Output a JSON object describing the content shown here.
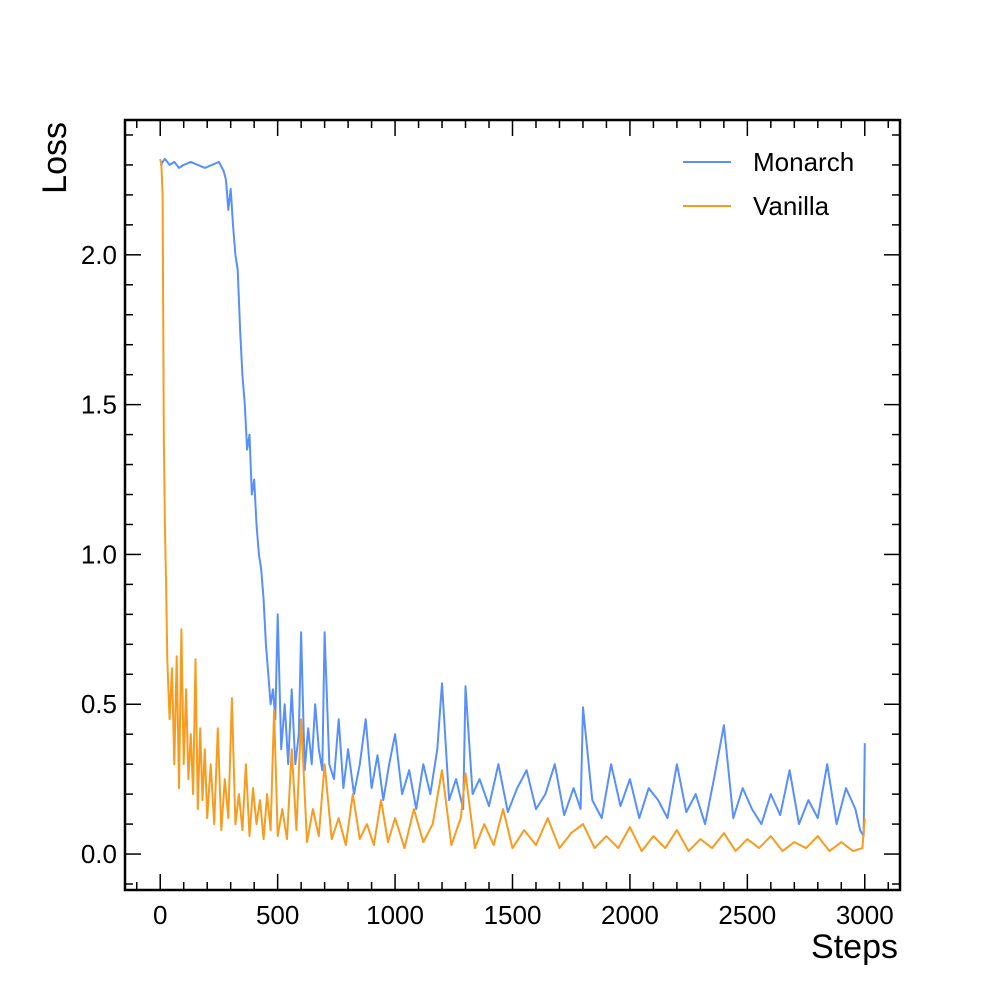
{
  "chart_data": {
    "type": "line",
    "title": "",
    "xlabel": "Steps",
    "ylabel": "Loss",
    "xlim": [
      -150,
      3150
    ],
    "ylim": [
      -0.12,
      2.45
    ],
    "grid": false,
    "legend_position": "top-right",
    "xticks": {
      "major": [
        0,
        500,
        1000,
        1500,
        2000,
        2500,
        3000
      ],
      "labels": [
        "0",
        "500",
        "1000",
        "1500",
        "2000",
        "2500",
        "3000"
      ],
      "minor": [
        -100,
        100,
        200,
        300,
        400,
        600,
        700,
        800,
        900,
        1100,
        1200,
        1300,
        1400,
        1600,
        1700,
        1800,
        1900,
        2100,
        2200,
        2300,
        2400,
        2600,
        2700,
        2800,
        2900,
        3100
      ]
    },
    "yticks": {
      "major": [
        0.0,
        0.5,
        1.0,
        1.5,
        2.0
      ],
      "labels": [
        "0.0",
        "0.5",
        "1.0",
        "1.5",
        "2.0"
      ],
      "minor": [
        -0.1,
        0.1,
        0.2,
        0.3,
        0.4,
        0.6,
        0.7,
        0.8,
        0.9,
        1.1,
        1.2,
        1.3,
        1.4,
        1.6,
        1.7,
        1.8,
        1.9,
        2.1,
        2.2,
        2.3,
        2.4
      ]
    },
    "series": [
      {
        "name": "Monarch",
        "color": "#5790fc",
        "x": [
          0,
          5,
          10,
          20,
          40,
          60,
          80,
          100,
          130,
          160,
          190,
          220,
          250,
          270,
          280,
          290,
          300,
          310,
          320,
          330,
          340,
          350,
          360,
          370,
          380,
          390,
          400,
          410,
          420,
          430,
          440,
          450,
          460,
          470,
          480,
          490,
          500,
          515,
          530,
          545,
          560,
          575,
          590,
          600,
          615,
          630,
          645,
          660,
          675,
          690,
          700,
          720,
          740,
          760,
          780,
          800,
          825,
          850,
          875,
          900,
          925,
          950,
          975,
          1000,
          1030,
          1060,
          1090,
          1120,
          1150,
          1180,
          1200,
          1230,
          1260,
          1290,
          1300,
          1330,
          1360,
          1400,
          1440,
          1480,
          1520,
          1560,
          1600,
          1640,
          1680,
          1720,
          1760,
          1790,
          1800,
          1840,
          1880,
          1920,
          1960,
          2000,
          2040,
          2080,
          2120,
          2160,
          2200,
          2240,
          2280,
          2320,
          2360,
          2400,
          2440,
          2480,
          2520,
          2560,
          2600,
          2640,
          2680,
          2720,
          2760,
          2800,
          2840,
          2880,
          2920,
          2960,
          2980,
          2995,
          3000
        ],
        "values": [
          2.3,
          2.3,
          2.31,
          2.32,
          2.3,
          2.31,
          2.29,
          2.3,
          2.31,
          2.3,
          2.29,
          2.3,
          2.31,
          2.28,
          2.25,
          2.15,
          2.22,
          2.1,
          2.0,
          1.95,
          1.75,
          1.6,
          1.5,
          1.35,
          1.4,
          1.2,
          1.25,
          1.1,
          1.0,
          0.95,
          0.85,
          0.7,
          0.6,
          0.5,
          0.55,
          0.45,
          0.8,
          0.35,
          0.5,
          0.3,
          0.55,
          0.3,
          0.4,
          0.74,
          0.28,
          0.42,
          0.3,
          0.5,
          0.35,
          0.28,
          0.74,
          0.3,
          0.25,
          0.45,
          0.22,
          0.35,
          0.2,
          0.3,
          0.45,
          0.22,
          0.33,
          0.18,
          0.3,
          0.4,
          0.2,
          0.28,
          0.15,
          0.3,
          0.2,
          0.35,
          0.57,
          0.18,
          0.25,
          0.15,
          0.56,
          0.2,
          0.25,
          0.16,
          0.3,
          0.14,
          0.22,
          0.28,
          0.15,
          0.2,
          0.3,
          0.13,
          0.22,
          0.15,
          0.49,
          0.18,
          0.12,
          0.3,
          0.16,
          0.25,
          0.12,
          0.22,
          0.18,
          0.12,
          0.3,
          0.14,
          0.2,
          0.1,
          0.26,
          0.43,
          0.12,
          0.22,
          0.15,
          0.1,
          0.2,
          0.13,
          0.28,
          0.1,
          0.18,
          0.12,
          0.3,
          0.1,
          0.22,
          0.15,
          0.08,
          0.06,
          0.37
        ]
      },
      {
        "name": "Vanilla",
        "color": "#f89c20",
        "x": [
          0,
          5,
          10,
          15,
          20,
          25,
          30,
          35,
          40,
          50,
          60,
          70,
          80,
          90,
          100,
          110,
          120,
          130,
          140,
          150,
          160,
          170,
          180,
          190,
          200,
          215,
          230,
          245,
          260,
          275,
          290,
          305,
          320,
          335,
          350,
          365,
          380,
          395,
          410,
          425,
          440,
          455,
          470,
          485,
          500,
          520,
          540,
          560,
          580,
          600,
          625,
          650,
          675,
          700,
          730,
          760,
          790,
          820,
          850,
          880,
          910,
          940,
          970,
          1000,
          1040,
          1080,
          1120,
          1160,
          1200,
          1240,
          1280,
          1300,
          1340,
          1380,
          1420,
          1460,
          1500,
          1550,
          1600,
          1650,
          1700,
          1750,
          1800,
          1850,
          1900,
          1950,
          2000,
          2050,
          2100,
          2150,
          2200,
          2250,
          2300,
          2350,
          2400,
          2450,
          2500,
          2550,
          2600,
          2650,
          2700,
          2750,
          2800,
          2850,
          2900,
          2950,
          2990,
          3000
        ],
        "values": [
          2.32,
          2.3,
          2.2,
          1.4,
          1.1,
          0.9,
          0.65,
          0.55,
          0.45,
          0.62,
          0.3,
          0.66,
          0.22,
          0.75,
          0.3,
          0.55,
          0.25,
          0.4,
          0.2,
          0.65,
          0.15,
          0.42,
          0.18,
          0.35,
          0.12,
          0.3,
          0.1,
          0.42,
          0.08,
          0.25,
          0.12,
          0.52,
          0.1,
          0.2,
          0.08,
          0.3,
          0.06,
          0.22,
          0.1,
          0.18,
          0.05,
          0.2,
          0.08,
          0.48,
          0.06,
          0.15,
          0.05,
          0.35,
          0.08,
          0.45,
          0.04,
          0.15,
          0.06,
          0.3,
          0.05,
          0.12,
          0.03,
          0.2,
          0.05,
          0.1,
          0.03,
          0.18,
          0.04,
          0.12,
          0.02,
          0.15,
          0.04,
          0.1,
          0.28,
          0.03,
          0.12,
          0.27,
          0.02,
          0.1,
          0.03,
          0.15,
          0.02,
          0.08,
          0.03,
          0.12,
          0.02,
          0.07,
          0.1,
          0.02,
          0.06,
          0.02,
          0.09,
          0.01,
          0.06,
          0.02,
          0.08,
          0.01,
          0.05,
          0.02,
          0.07,
          0.01,
          0.05,
          0.02,
          0.06,
          0.01,
          0.04,
          0.02,
          0.06,
          0.01,
          0.04,
          0.01,
          0.02,
          0.12
        ]
      }
    ]
  }
}
